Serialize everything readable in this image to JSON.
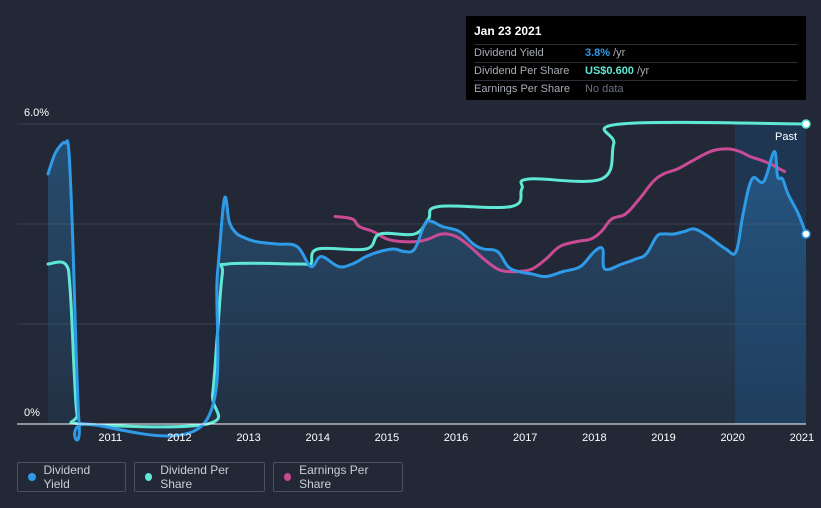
{
  "tooltip": {
    "date": "Jan 23 2021",
    "rows": [
      {
        "label": "Dividend Yield",
        "value": "3.8%",
        "unit": "/yr",
        "color": "#2f9be8"
      },
      {
        "label": "Dividend Per Share",
        "value": "US$0.600",
        "unit": "/yr",
        "color": "#5fe8d6"
      },
      {
        "label": "Earnings Per Share",
        "value": "No data",
        "unit": "",
        "color": "#6b7280"
      }
    ]
  },
  "legend": [
    {
      "label": "Dividend Yield",
      "color": "#2f9be8"
    },
    {
      "label": "Dividend Per Share",
      "color": "#5fe8d6"
    },
    {
      "label": "Earnings Per Share",
      "color": "#c94b93"
    }
  ],
  "chart_data": {
    "type": "line",
    "title": "",
    "xlabel": "",
    "ylabel": "",
    "ylim": [
      0,
      6.0
    ],
    "xlim": [
      2010.1,
      2021.06
    ],
    "y_tick_labels": [
      {
        "value": 6.0,
        "label": "6.0%"
      },
      {
        "value": 0,
        "label": "0%"
      }
    ],
    "x_tick_labels": [
      "2011",
      "2012",
      "2013",
      "2014",
      "2015",
      "2016",
      "2017",
      "2018",
      "2019",
      "2020",
      "2021"
    ],
    "past_label": "Past",
    "series": [
      {
        "name": "Dividend Yield",
        "color": "#2f9be8",
        "x": [
          2010.1,
          2010.2,
          2010.3,
          2010.35,
          2010.4,
          2010.45,
          2010.55,
          2010.65,
          2012.35,
          2012.55,
          2012.65,
          2012.72,
          2012.8,
          2012.9,
          2013.1,
          2013.4,
          2013.7,
          2013.9,
          2014.05,
          2014.3,
          2014.5,
          2014.7,
          2014.9,
          2015.1,
          2015.25,
          2015.4,
          2015.55,
          2015.65,
          2015.8,
          2016.05,
          2016.25,
          2016.4,
          2016.6,
          2016.75,
          2016.9,
          2017.1,
          2017.3,
          2017.55,
          2017.8,
          2018.0,
          2018.12,
          2018.15,
          2018.4,
          2018.6,
          2018.75,
          2018.9,
          2019.0,
          2019.15,
          2019.3,
          2019.45,
          2019.65,
          2019.9,
          2020.05,
          2020.15,
          2020.28,
          2020.45,
          2020.6,
          2020.65,
          2020.72,
          2020.8,
          2020.95,
          2021.06
        ],
        "y": [
          5.0,
          5.4,
          5.6,
          5.62,
          5.5,
          4.0,
          0,
          0,
          0,
          3.0,
          4.5,
          4.05,
          3.85,
          3.75,
          3.65,
          3.6,
          3.55,
          3.15,
          3.35,
          3.15,
          3.2,
          3.35,
          3.45,
          3.5,
          3.45,
          3.5,
          4.0,
          4.05,
          3.95,
          3.85,
          3.6,
          3.5,
          3.45,
          3.15,
          3.05,
          3.0,
          2.95,
          3.05,
          3.15,
          3.45,
          3.5,
          3.1,
          3.2,
          3.3,
          3.4,
          3.75,
          3.8,
          3.8,
          3.85,
          3.9,
          3.75,
          3.5,
          3.45,
          4.2,
          4.9,
          4.85,
          5.45,
          4.95,
          4.9,
          4.6,
          4.2,
          3.8
        ]
      },
      {
        "name": "Dividend Per Share",
        "color": "#5fe8d6",
        "x": [
          2010.1,
          2010.35,
          2010.42,
          2010.48,
          2010.52,
          2010.6,
          2012.4,
          2012.48,
          2012.55,
          2012.62,
          2012.7,
          2013.75,
          2013.9,
          2014.0,
          2014.7,
          2014.9,
          2015.4,
          2015.6,
          2015.75,
          2016.8,
          2016.95,
          2017.05,
          2018.1,
          2018.28,
          2018.38,
          2021.06
        ],
        "y": [
          3.2,
          3.2,
          2.7,
          1.0,
          0.2,
          0,
          0,
          0.6,
          1.8,
          3.0,
          3.2,
          3.2,
          3.2,
          3.5,
          3.5,
          3.8,
          3.8,
          4.1,
          4.35,
          4.35,
          4.7,
          4.9,
          4.9,
          5.6,
          6.0,
          6.0
        ]
      },
      {
        "name": "Earnings Per Share",
        "color": "#c94b93",
        "x": [
          2014.25,
          2014.5,
          2014.6,
          2014.8,
          2015.0,
          2015.2,
          2015.45,
          2015.6,
          2015.8,
          2016.0,
          2016.2,
          2016.4,
          2016.6,
          2016.75,
          2016.9,
          2017.1,
          2017.3,
          2017.5,
          2017.75,
          2017.95,
          2018.1,
          2018.25,
          2018.45,
          2018.65,
          2018.85,
          2019.0,
          2019.2,
          2019.4,
          2019.6,
          2019.75,
          2019.95,
          2020.1,
          2020.25,
          2020.4,
          2020.55,
          2020.68,
          2020.75
        ],
        "y": [
          4.15,
          4.1,
          3.95,
          3.85,
          3.7,
          3.65,
          3.65,
          3.7,
          3.8,
          3.75,
          3.55,
          3.3,
          3.1,
          3.05,
          3.05,
          3.1,
          3.3,
          3.55,
          3.65,
          3.7,
          3.85,
          4.1,
          4.2,
          4.5,
          4.85,
          5.0,
          5.1,
          5.25,
          5.4,
          5.48,
          5.5,
          5.45,
          5.35,
          5.28,
          5.2,
          5.1,
          5.05
        ]
      }
    ]
  }
}
